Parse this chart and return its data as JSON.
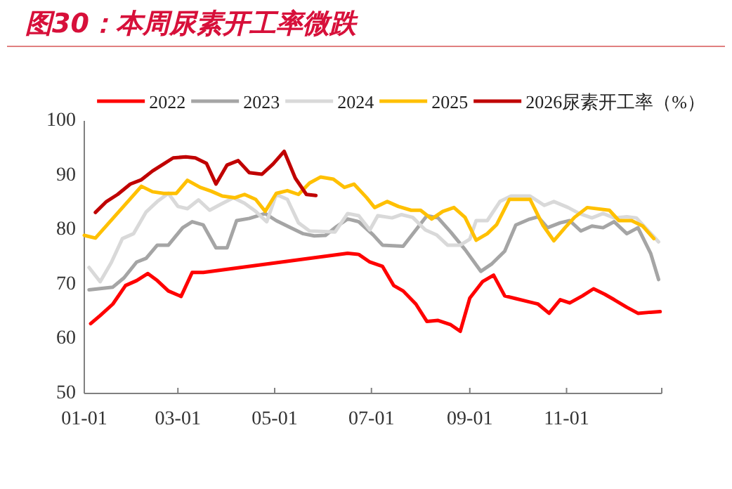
{
  "chart_data": {
    "type": "line",
    "title": "图30：本周尿素开工率微跌",
    "xlim": [
      "--01-01",
      "--12-31"
    ],
    "xticks": [
      {
        "value": "--01-01",
        "label": "01-01"
      },
      {
        "value": "--03-01",
        "label": "03-01"
      },
      {
        "value": "--05-01",
        "label": "05-01"
      },
      {
        "value": "--07-01",
        "label": "07-01"
      },
      {
        "value": "--09-01",
        "label": "09-01"
      },
      {
        "value": "--11-01",
        "label": "11-01"
      },
      {
        "value": "--12-31",
        "label": null
      }
    ],
    "ylim": [
      50,
      100
    ],
    "yticks": [
      50,
      60,
      70,
      80,
      90,
      100
    ],
    "legend": "top",
    "grid": false,
    "line_style": "solid",
    "marker": "none",
    "series": [
      {
        "name": "2022",
        "color": "#ff0000",
        "x": [
          "--01-05",
          "--01-11",
          "--01-19",
          "--01-27",
          "--02-03",
          "--02-10",
          "--02-16",
          "--02-23",
          "--03-03",
          "--03-10",
          "--03-17",
          "--06-16",
          "--06-23",
          "--06-30",
          "--07-08",
          "--07-15",
          "--07-21",
          "--07-29",
          "--08-05",
          "--08-12",
          "--08-20",
          "--08-26",
          "--09-01",
          "--09-09",
          "--09-16",
          "--09-23",
          "--09-30",
          "--10-07",
          "--10-14",
          "--10-21",
          "--10-28",
          "--11-03",
          "--11-11",
          "--11-18",
          "--11-25",
          "--12-01",
          "--12-09",
          "--12-16",
          "--12-24",
          "--12-30"
        ],
        "values": [
          62.8,
          64.3,
          66.4,
          69.8,
          70.7,
          72.0,
          70.7,
          68.8,
          67.8,
          72.2,
          72.2,
          75.7,
          75.5,
          74.1,
          73.3,
          69.8,
          68.8,
          66.4,
          63.2,
          63.4,
          62.6,
          61.4,
          67.5,
          70.5,
          71.7,
          67.9,
          67.4,
          66.9,
          66.4,
          64.7,
          67.2,
          66.6,
          67.9,
          69.2,
          68.2,
          67.2,
          65.8,
          64.7,
          64.9,
          65.0
        ]
      },
      {
        "name": "2023",
        "color": "#a5a5a5",
        "x": [
          "--01-04",
          "--01-19",
          "--01-26",
          "--02-03",
          "--02-09",
          "--02-16",
          "--02-23",
          "--03-04",
          "--03-10",
          "--03-17",
          "--03-25",
          "--04-01",
          "--04-07",
          "--04-15",
          "--04-25",
          "--05-02",
          "--05-11",
          "--05-19",
          "--05-26",
          "--06-02",
          "--06-09",
          "--06-16",
          "--06-23",
          "--07-02",
          "--07-08",
          "--07-21",
          "--07-29",
          "--08-05",
          "--08-12",
          "--08-20",
          "--08-29",
          "--09-08",
          "--09-15",
          "--09-23",
          "--09-30",
          "--10-08",
          "--10-14",
          "--10-20",
          "--10-28",
          "--11-03",
          "--11-10",
          "--11-17",
          "--11-24",
          "--12-01",
          "--12-09",
          "--12-16",
          "--12-24",
          "--12-29"
        ],
        "values": [
          69.0,
          69.5,
          71.2,
          74.1,
          74.8,
          77.2,
          77.2,
          80.4,
          81.5,
          80.9,
          76.7,
          76.7,
          81.7,
          82.1,
          83.0,
          81.7,
          80.4,
          79.3,
          78.9,
          79.0,
          80.6,
          82.0,
          81.5,
          79.1,
          77.2,
          77.0,
          80.0,
          82.6,
          82.2,
          79.6,
          76.4,
          72.4,
          73.8,
          76.1,
          80.9,
          81.9,
          82.4,
          80.4,
          81.3,
          81.7,
          79.8,
          80.7,
          80.4,
          81.5,
          79.3,
          80.4,
          75.7,
          70.9
        ]
      },
      {
        "name": "2024",
        "color": "#d9d9d9",
        "x": [
          "--01-04",
          "--01-11",
          "--01-18",
          "--01-25",
          "--02-01",
          "--02-09",
          "--02-16",
          "--02-23",
          "--03-01",
          "--03-07",
          "--03-14",
          "--03-21",
          "--03-28",
          "--04-05",
          "--04-12",
          "--04-19",
          "--04-26",
          "--05-02",
          "--05-09",
          "--05-16",
          "--05-23",
          "--06-01",
          "--06-08",
          "--06-16",
          "--06-23",
          "--06-30",
          "--07-05",
          "--07-14",
          "--07-20",
          "--07-27",
          "--08-04",
          "--08-11",
          "--08-18",
          "--08-26",
          "--09-01",
          "--09-05",
          "--09-12",
          "--09-20",
          "--09-27",
          "--10-09",
          "--10-18",
          "--10-24",
          "--11-02",
          "--11-09",
          "--11-17",
          "--11-24",
          "--12-01",
          "--12-09",
          "--12-15",
          "--12-22",
          "--12-29"
        ],
        "values": [
          73.1,
          70.5,
          74.0,
          78.4,
          79.3,
          83.3,
          85.2,
          86.7,
          84.3,
          83.9,
          85.5,
          83.6,
          84.7,
          85.9,
          84.9,
          83.4,
          81.5,
          86.5,
          85.6,
          81.3,
          79.8,
          79.7,
          79.6,
          83.0,
          82.6,
          80.0,
          82.6,
          82.2,
          82.8,
          82.3,
          80.0,
          79.1,
          77.2,
          77.2,
          78.3,
          81.7,
          81.7,
          85.2,
          86.2,
          86.2,
          84.5,
          85.2,
          84.1,
          83.0,
          82.2,
          83.0,
          82.2,
          82.4,
          82.2,
          80.0,
          77.8
        ]
      },
      {
        "name": "2025",
        "color": "#ffc000",
        "x": [
          "--01-01",
          "--01-08",
          "--02-06",
          "--02-13",
          "--02-20",
          "--02-28",
          "--03-07",
          "--03-15",
          "--03-22",
          "--03-29",
          "--04-06",
          "--04-12",
          "--04-19",
          "--04-25",
          "--05-02",
          "--05-09",
          "--05-16",
          "--05-23",
          "--05-30",
          "--06-07",
          "--06-14",
          "--06-20",
          "--06-28",
          "--07-03",
          "--07-11",
          "--07-18",
          "--07-26",
          "--08-01",
          "--08-08",
          "--08-15",
          "--08-22",
          "--08-29",
          "--09-05",
          "--09-12",
          "--09-18",
          "--09-26",
          "--10-09",
          "--10-17",
          "--10-24",
          "--10-31",
          "--11-06",
          "--11-14",
          "--11-28",
          "--12-04",
          "--12-12",
          "--12-19",
          "--12-26"
        ],
        "values": [
          79.0,
          78.5,
          88.0,
          87.0,
          86.7,
          86.7,
          89.1,
          87.8,
          87.1,
          86.2,
          85.9,
          86.5,
          85.6,
          83.4,
          86.7,
          87.2,
          86.5,
          88.6,
          89.7,
          89.3,
          87.8,
          88.4,
          85.9,
          84.1,
          85.2,
          84.3,
          83.6,
          83.6,
          82.0,
          83.4,
          84.1,
          82.3,
          78.1,
          79.3,
          81.0,
          85.6,
          85.6,
          80.9,
          78.0,
          80.4,
          82.3,
          84.1,
          83.6,
          81.7,
          81.7,
          80.7,
          78.4
        ]
      },
      {
        "name": "2026尿素开工率（%）",
        "color": "#c00000",
        "x": [
          "--01-08",
          "--01-15",
          "--01-22",
          "--01-30",
          "--02-06",
          "--02-13",
          "--02-20",
          "--02-26",
          "--03-06",
          "--03-12",
          "--03-19",
          "--03-25",
          "--04-01",
          "--04-08",
          "--04-15",
          "--04-23",
          "--04-30",
          "--05-07",
          "--05-14",
          "--05-21",
          "--05-27"
        ],
        "values": [
          83.2,
          85.2,
          86.5,
          88.4,
          89.2,
          90.8,
          92.1,
          93.2,
          93.4,
          93.2,
          92.2,
          88.4,
          91.9,
          92.7,
          90.5,
          90.2,
          92.1,
          94.4,
          89.5,
          86.5,
          86.3
        ]
      }
    ]
  }
}
